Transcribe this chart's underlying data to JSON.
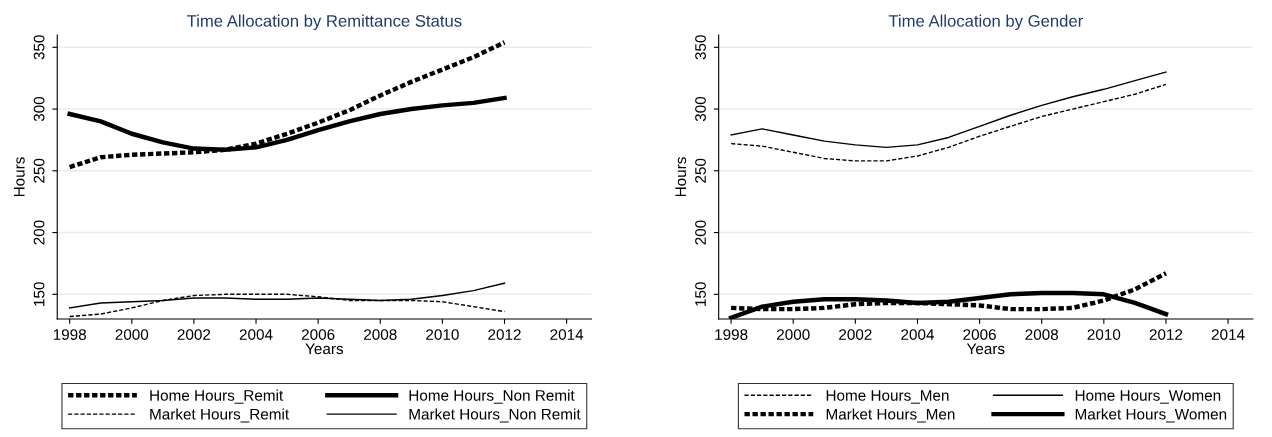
{
  "chart_data": [
    {
      "type": "line",
      "title": "Time Allocation by Remittance Status",
      "xlabel": "Years",
      "ylabel": "Hours",
      "x": [
        1998,
        1999,
        2000,
        2001,
        2002,
        2003,
        2004,
        2005,
        2006,
        2007,
        2008,
        2009,
        2010,
        2011,
        2012
      ],
      "xlim": [
        1997.6,
        2014.8
      ],
      "ylim": [
        130,
        360
      ],
      "xticks": [
        1998,
        2000,
        2002,
        2004,
        2006,
        2008,
        2010,
        2012,
        2014
      ],
      "yticks": [
        150,
        200,
        250,
        300,
        350
      ],
      "grid": "y",
      "legend": "bottom",
      "marker": "none",
      "series": [
        {
          "name": "Home Hours_Remit",
          "color": "#000000",
          "line_style": "dashed",
          "values": [
            253,
            261,
            263,
            264,
            265,
            267,
            272,
            280,
            289,
            299,
            311,
            322,
            332,
            342,
            354
          ]
        },
        {
          "name": "Home Hours_Non Remit",
          "color": "#000000",
          "line_style": "solid",
          "values": [
            296,
            290,
            280,
            273,
            268,
            267,
            269,
            275,
            283,
            290,
            296,
            300,
            303,
            305,
            309
          ]
        },
        {
          "name": "Market Hours_Remit",
          "color": "#000000",
          "line_style": "dashed",
          "values": [
            132,
            134,
            139,
            145,
            149,
            150,
            150,
            150,
            148,
            145,
            145,
            145,
            144,
            140,
            136
          ]
        },
        {
          "name": "Market Hours_Non Remit",
          "color": "#000000",
          "line_style": "solid",
          "values": [
            139,
            143,
            144,
            145,
            147,
            147,
            146,
            146,
            147,
            146,
            145,
            146,
            149,
            153,
            159
          ]
        }
      ]
    },
    {
      "type": "line",
      "title": "Time Allocation by Gender",
      "xlabel": "Years",
      "ylabel": "Hours",
      "x": [
        1998,
        1999,
        2000,
        2001,
        2002,
        2003,
        2004,
        2005,
        2006,
        2007,
        2008,
        2009,
        2010,
        2011,
        2012
      ],
      "xlim": [
        1997.6,
        2014.8
      ],
      "ylim": [
        130,
        360
      ],
      "xticks": [
        1998,
        2000,
        2002,
        2004,
        2006,
        2008,
        2010,
        2012,
        2014
      ],
      "yticks": [
        150,
        200,
        250,
        300,
        350
      ],
      "grid": "y",
      "legend": "bottom",
      "marker": "none",
      "series": [
        {
          "name": "Home Hours_Men",
          "color": "#000000",
          "line_style": "dashed",
          "values": [
            272,
            270,
            265,
            260,
            258,
            258,
            262,
            269,
            278,
            286,
            294,
            300,
            306,
            312,
            320
          ]
        },
        {
          "name": "Home Hours_Women",
          "color": "#000000",
          "line_style": "solid",
          "values": [
            279,
            284,
            279,
            274,
            271,
            269,
            271,
            277,
            286,
            295,
            303,
            310,
            316,
            323,
            330
          ]
        },
        {
          "name": "Market Hours_Men",
          "color": "#000000",
          "line_style": "dashed",
          "values": [
            139,
            138,
            138,
            139,
            142,
            143,
            143,
            142,
            141,
            138,
            138,
            139,
            145,
            154,
            167
          ]
        },
        {
          "name": "Market Hours_Women",
          "color": "#000000",
          "line_style": "solid",
          "values": [
            131,
            140,
            144,
            146,
            146,
            145,
            143,
            144,
            147,
            150,
            151,
            151,
            150,
            143,
            134
          ]
        }
      ]
    }
  ]
}
